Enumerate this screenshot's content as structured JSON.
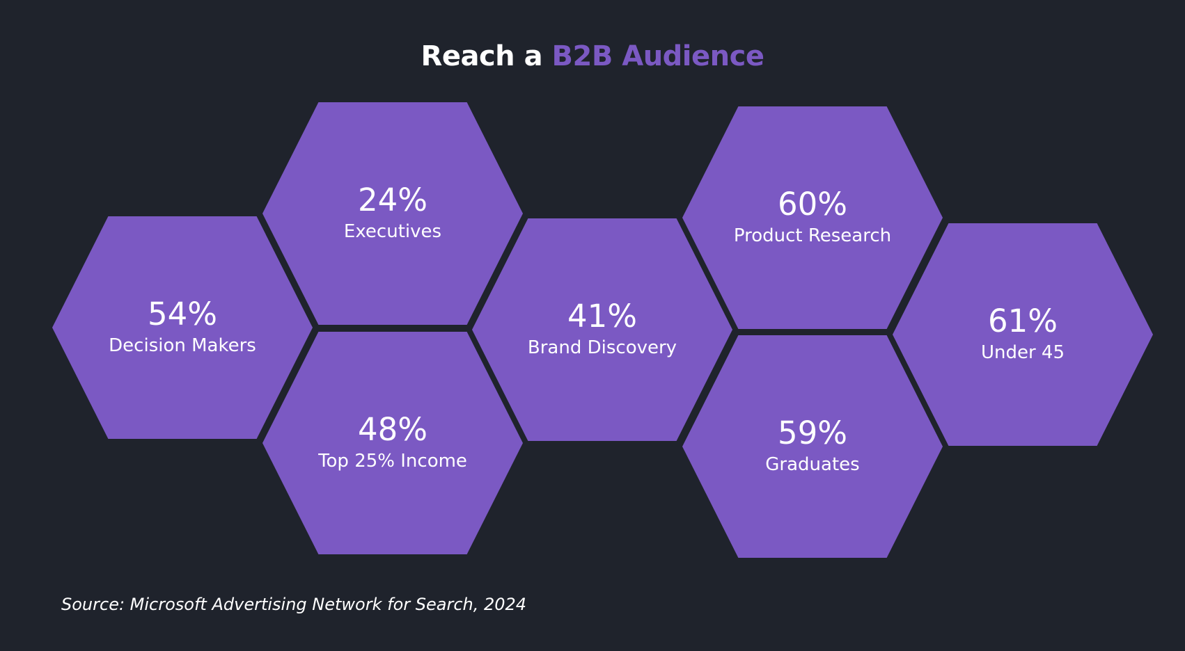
{
  "title": {
    "prefix": "Reach a",
    "accent": "B2B Audience",
    "accent_color": "#7b59c3"
  },
  "hexagon_color": "#7b59c3",
  "background_color": "#1f232c",
  "stats": [
    {
      "value": "54%",
      "label": "Decision Makers"
    },
    {
      "value": "24%",
      "label": "Executives"
    },
    {
      "value": "48%",
      "label": "Top 25% Income"
    },
    {
      "value": "41%",
      "label": "Brand Discovery"
    },
    {
      "value": "60%",
      "label": "Product Research"
    },
    {
      "value": "59%",
      "label": "Graduates"
    },
    {
      "value": "61%",
      "label": "Under 45"
    }
  ],
  "source": "Source: Microsoft Advertising Network for Search, 2024"
}
